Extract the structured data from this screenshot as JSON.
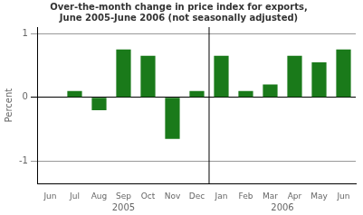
{
  "chart_data": {
    "type": "bar",
    "title": "Over-the-month change in price index for exports,\nJune 2005-June 2006 (not seasonally adjusted)",
    "ylabel": "Percent",
    "categories": [
      "Jun",
      "Jul",
      "Aug",
      "Sep",
      "Oct",
      "Nov",
      "Dec",
      "Jan",
      "Feb",
      "Mar",
      "Apr",
      "May",
      "Jun"
    ],
    "values": [
      0.0,
      0.1,
      -0.2,
      0.75,
      0.65,
      -0.65,
      0.1,
      0.65,
      0.1,
      0.2,
      0.65,
      0.55,
      0.75
    ],
    "color": "#1a7a1a",
    "ylim": [
      -1.35,
      1.1
    ],
    "yticks": [
      -1,
      0,
      1
    ],
    "grid": true,
    "annotations": [
      "2005",
      "2006"
    ]
  }
}
